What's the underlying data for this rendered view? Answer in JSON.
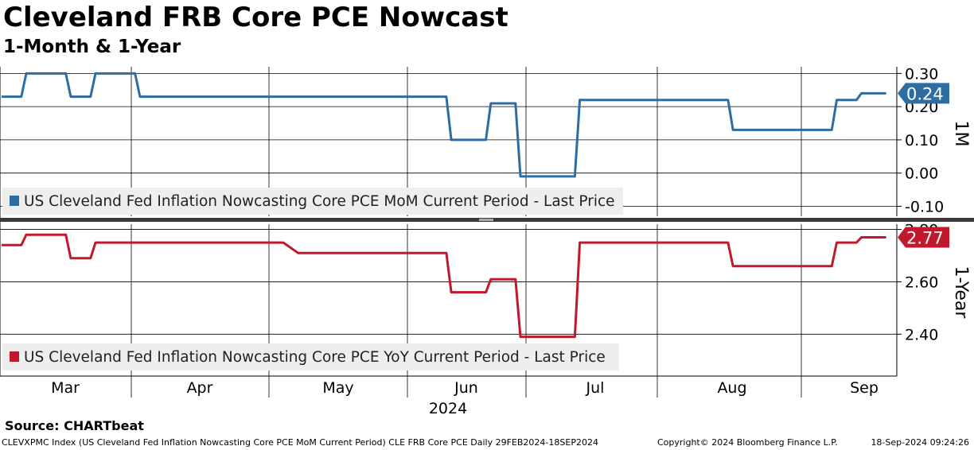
{
  "title": "Cleveland FRB Core PCE Nowcast",
  "subtitle": "1-Month & 1-Year",
  "source": "Source: CHARTbeat",
  "footer": {
    "left": "CLEVXPMC Index (US Cleveland Fed Inflation Nowcasting Core PCE MoM Current Period) CLE FRB Core PCE  Daily 29FEB2024-18SEP2024",
    "copyright": "Copyright© 2024 Bloomberg Finance L.P.",
    "timestamp": "18-Sep-2024 09:24:26"
  },
  "chart_data": [
    {
      "type": "line",
      "axis_label": "1M",
      "x_labels": [
        "Mar",
        "Apr",
        "May",
        "Jun",
        "Jul",
        "Aug",
        "Sep"
      ],
      "x_year_label": "2024",
      "ylim": [
        -0.13,
        0.32
      ],
      "yticks": [
        0.3,
        0.2,
        0.1,
        0.0,
        -0.1
      ],
      "ytick_labels": [
        "0.30",
        "0.20",
        "0.10",
        "0.00",
        "-0.10"
      ],
      "last_value_label": "0.24",
      "color": "#2e6da4",
      "grid": true,
      "legend_position": "bottom-left",
      "series": [
        {
          "name": "US Cleveland Fed Inflation Nowcasting Core PCE MoM Current Period  - Last Price",
          "points": [
            [
              "2024-02-29",
              0.23
            ],
            [
              "2024-03-04",
              0.23
            ],
            [
              "2024-03-05",
              0.3
            ],
            [
              "2024-03-13",
              0.3
            ],
            [
              "2024-03-14",
              0.23
            ],
            [
              "2024-03-18",
              0.23
            ],
            [
              "2024-03-19",
              0.3
            ],
            [
              "2024-03-27",
              0.3
            ],
            [
              "2024-03-28",
              0.23
            ],
            [
              "2024-05-29",
              0.23
            ],
            [
              "2024-05-30",
              0.1
            ],
            [
              "2024-06-06",
              0.1
            ],
            [
              "2024-06-07",
              0.21
            ],
            [
              "2024-06-12",
              0.21
            ],
            [
              "2024-06-13",
              -0.01
            ],
            [
              "2024-06-24",
              -0.01
            ],
            [
              "2024-06-25",
              0.22
            ],
            [
              "2024-07-25",
              0.22
            ],
            [
              "2024-07-26",
              0.13
            ],
            [
              "2024-08-15",
              0.13
            ],
            [
              "2024-08-16",
              0.22
            ],
            [
              "2024-08-20",
              0.22
            ],
            [
              "2024-08-21",
              0.24
            ],
            [
              "2024-08-26",
              0.24
            ]
          ]
        }
      ]
    },
    {
      "type": "line",
      "axis_label": "1-Year",
      "x_labels": [
        "Mar",
        "Apr",
        "May",
        "Jun",
        "Jul",
        "Aug",
        "Sep"
      ],
      "x_year_label": "2024",
      "ylim": [
        2.24,
        2.82
      ],
      "yticks": [
        2.8,
        2.6,
        2.4
      ],
      "ytick_labels": [
        "2.80",
        "2.60",
        "2.40"
      ],
      "last_value_label": "2.77",
      "color": "#c0192d",
      "grid": true,
      "legend_position": "bottom-left",
      "series": [
        {
          "name": "US Cleveland Fed Inflation Nowcasting Core PCE YoY Current Period  - Last Price",
          "points": [
            [
              "2024-02-29",
              2.74
            ],
            [
              "2024-03-04",
              2.74
            ],
            [
              "2024-03-05",
              2.78
            ],
            [
              "2024-03-13",
              2.78
            ],
            [
              "2024-03-14",
              2.69
            ],
            [
              "2024-03-18",
              2.69
            ],
            [
              "2024-03-19",
              2.75
            ],
            [
              "2024-04-26",
              2.75
            ],
            [
              "2024-04-29",
              2.71
            ],
            [
              "2024-05-29",
              2.71
            ],
            [
              "2024-05-30",
              2.56
            ],
            [
              "2024-06-06",
              2.56
            ],
            [
              "2024-06-07",
              2.61
            ],
            [
              "2024-06-12",
              2.61
            ],
            [
              "2024-06-13",
              2.39
            ],
            [
              "2024-06-24",
              2.39
            ],
            [
              "2024-06-25",
              2.75
            ],
            [
              "2024-07-25",
              2.75
            ],
            [
              "2024-07-26",
              2.66
            ],
            [
              "2024-08-15",
              2.66
            ],
            [
              "2024-08-16",
              2.75
            ],
            [
              "2024-08-20",
              2.75
            ],
            [
              "2024-08-21",
              2.77
            ],
            [
              "2024-08-26",
              2.77
            ]
          ]
        }
      ]
    }
  ]
}
